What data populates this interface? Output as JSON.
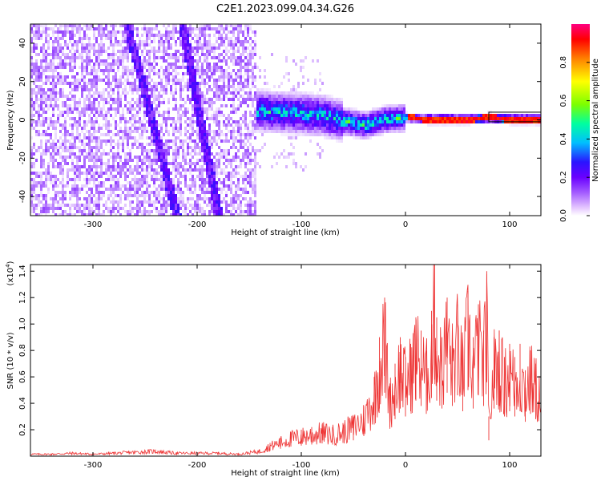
{
  "figure": {
    "title": "C2E1.2023.099.04.34.G26"
  },
  "chart_data": [
    {
      "type": "heatmap",
      "title": "C2E1.2023.099.04.34.G26",
      "xlabel": "Height of straight line (km)",
      "ylabel": "Frequency (Hz)",
      "xlim": [
        -360,
        130
      ],
      "ylim": [
        -50,
        50
      ],
      "xticks": [
        -300,
        -200,
        -100,
        0,
        100
      ],
      "xtick_labels": [
        "-300",
        "-200",
        "-100",
        "0",
        "100"
      ],
      "yticks": [
        -40,
        -20,
        0,
        20,
        40
      ],
      "ytick_labels": [
        "-40",
        "-20",
        "0",
        "20",
        "40"
      ],
      "colorbar": {
        "label": "Normalized spectral amplitude",
        "range": [
          0,
          1
        ],
        "ticks": [
          0,
          0.2,
          0.4,
          0.6,
          0.8
        ],
        "tick_labels": [
          "0.0",
          "0.2",
          "0.4",
          "0.6",
          "0.8"
        ],
        "colormap": [
          "#ffffff",
          "#d9b6ff",
          "#a45cff",
          "#6a00ff",
          "#2a14ff",
          "#00bfff",
          "#00ffa0",
          "#7cff00",
          "#ffff00",
          "#ff8000",
          "#ff0000",
          "#ff0080"
        ]
      },
      "ridge": {
        "description_points_x": [
          -150,
          -130,
          -100,
          -80,
          -60,
          -40,
          -20,
          0,
          20,
          40,
          60,
          80,
          100,
          130
        ],
        "frequency_y": [
          6,
          5,
          4,
          3,
          0,
          -2,
          1,
          2,
          1,
          1,
          1,
          2,
          1,
          1
        ]
      },
      "streaks": [
        {
          "x_top": -268,
          "x_bottom": -220
        },
        {
          "x_top": -215,
          "x_bottom": -180
        }
      ],
      "grid": false
    },
    {
      "type": "line",
      "xlabel": "Height of straight line (km)",
      "ylabel": "SNR (10 * v/v)",
      "y_multiplier_label": "(x10",
      "y_multiplier_exp": "4",
      "y_multiplier_close": ")",
      "xlim": [
        -360,
        130
      ],
      "ylim": [
        0,
        1.45
      ],
      "xticks": [
        -300,
        -200,
        -100,
        0,
        100
      ],
      "xtick_labels": [
        "-300",
        "-200",
        "-100",
        "0",
        "100"
      ],
      "yticks": [
        0.2,
        0.4,
        0.6,
        0.8,
        1.0,
        1.2,
        1.4
      ],
      "ytick_labels": [
        "0.2",
        "0.4",
        "0.6",
        "0.8",
        "1.0",
        "1.2",
        "1.4"
      ],
      "color": "#ee3333",
      "series": [
        {
          "x": [
            -360,
            -340,
            -320,
            -300,
            -280,
            -260,
            -240,
            -220,
            -200,
            -180,
            -160,
            -140,
            -130,
            -120,
            -110,
            -100,
            -90,
            -80,
            -70,
            -60,
            -50,
            -40,
            -30,
            -25,
            -20,
            -15,
            -10,
            -5,
            0,
            5,
            10,
            15,
            20,
            25,
            28,
            30,
            35,
            40,
            45,
            50,
            55,
            60,
            65,
            70,
            75,
            78,
            80,
            85,
            90,
            95,
            100,
            105,
            110,
            115,
            120,
            125,
            130
          ],
          "values": [
            0.02,
            0.02,
            0.03,
            0.02,
            0.03,
            0.04,
            0.05,
            0.03,
            0.03,
            0.03,
            0.02,
            0.05,
            0.1,
            0.14,
            0.18,
            0.2,
            0.22,
            0.24,
            0.22,
            0.25,
            0.3,
            0.38,
            0.6,
            0.9,
            1.2,
            0.55,
            0.7,
            0.9,
            0.75,
            0.85,
            1.05,
            0.95,
            0.8,
            1.1,
            1.45,
            1.05,
            0.9,
            1.2,
            0.95,
            1.15,
            0.85,
            1.25,
            0.9,
            1.15,
            0.95,
            1.4,
            0.3,
            0.9,
            0.95,
            0.75,
            0.85,
            0.75,
            0.85,
            0.65,
            0.8,
            0.7,
            0.6
          ]
        }
      ],
      "grid": false
    }
  ]
}
